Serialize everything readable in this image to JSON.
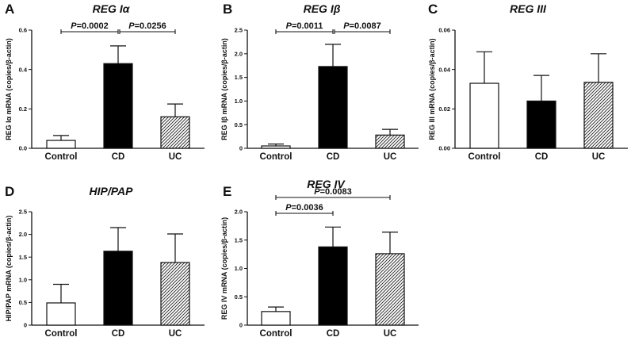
{
  "figure": {
    "background": "#ffffff"
  },
  "chart_data": [
    {
      "panel": "A",
      "title": "REG Iα",
      "type": "bar",
      "ylabel": "REG Iα mRNA (copies/β-actin)",
      "categories": [
        "Control",
        "CD",
        "UC"
      ],
      "values": [
        0.04,
        0.43,
        0.16
      ],
      "errors": [
        0.025,
        0.09,
        0.065
      ],
      "fills": [
        "white",
        "black",
        "hatch"
      ],
      "ylim": [
        0,
        0.6
      ],
      "yticks": [
        "0.0",
        "0.2",
        "0.4",
        "0.6"
      ],
      "comparisons": [
        {
          "from": 0,
          "to": 1,
          "p": "0.0002",
          "level": 0
        },
        {
          "from": 1,
          "to": 2,
          "p": "0.0256",
          "level": 0
        }
      ]
    },
    {
      "panel": "B",
      "title": "REG Iβ",
      "type": "bar",
      "ylabel": "REG Iβ mRNA (copies/β-actin)",
      "categories": [
        "Control",
        "CD",
        "UC"
      ],
      "values": [
        0.05,
        1.73,
        0.28
      ],
      "errors": [
        0.04,
        0.47,
        0.12
      ],
      "fills": [
        "white",
        "black",
        "hatch"
      ],
      "ylim": [
        0,
        2.5
      ],
      "yticks": [
        "0",
        "0.5",
        "1.0",
        "1.5",
        "2.0",
        "2.5"
      ],
      "comparisons": [
        {
          "from": 0,
          "to": 1,
          "p": "0.0011",
          "level": 0
        },
        {
          "from": 1,
          "to": 2,
          "p": "0.0087",
          "level": 0
        }
      ]
    },
    {
      "panel": "C",
      "title": "REG III",
      "type": "bar",
      "ylabel": "REG III mRNA (copies/β-actin)",
      "categories": [
        "Control",
        "CD",
        "UC"
      ],
      "values": [
        0.033,
        0.024,
        0.0335
      ],
      "errors": [
        0.016,
        0.013,
        0.0145
      ],
      "fills": [
        "white",
        "black",
        "hatch"
      ],
      "ylim": [
        0,
        0.06
      ],
      "yticks": [
        "0.00",
        "0.02",
        "0.04",
        "0.06"
      ],
      "comparisons": []
    },
    {
      "panel": "D",
      "title": "HIP/PAP",
      "type": "bar",
      "ylabel": "HIP/PAP mRNA (copies/β-actin)",
      "categories": [
        "Control",
        "CD",
        "UC"
      ],
      "values": [
        0.49,
        1.63,
        1.38
      ],
      "errors": [
        0.41,
        0.52,
        0.63
      ],
      "fills": [
        "white",
        "black",
        "hatch"
      ],
      "ylim": [
        0,
        2.5
      ],
      "yticks": [
        "0",
        "0.5",
        "1.0",
        "1.5",
        "2.0",
        "2.5"
      ],
      "comparisons": []
    },
    {
      "panel": "E",
      "title": "REG IV",
      "type": "bar",
      "ylabel": "REG IV mRNA (copies/β-actin)",
      "categories": [
        "Control",
        "CD",
        "UC"
      ],
      "values": [
        0.24,
        1.38,
        1.26
      ],
      "errors": [
        0.08,
        0.35,
        0.38
      ],
      "fills": [
        "white",
        "black",
        "hatch"
      ],
      "ylim": [
        0,
        2.0
      ],
      "yticks": [
        "0",
        "0.5",
        "1.0",
        "1.5",
        "2.0"
      ],
      "comparisons": [
        {
          "from": 0,
          "to": 1,
          "p": "0.0036",
          "level": 0
        },
        {
          "from": 0,
          "to": 2,
          "p": "0.0083",
          "level": 1
        }
      ]
    }
  ]
}
